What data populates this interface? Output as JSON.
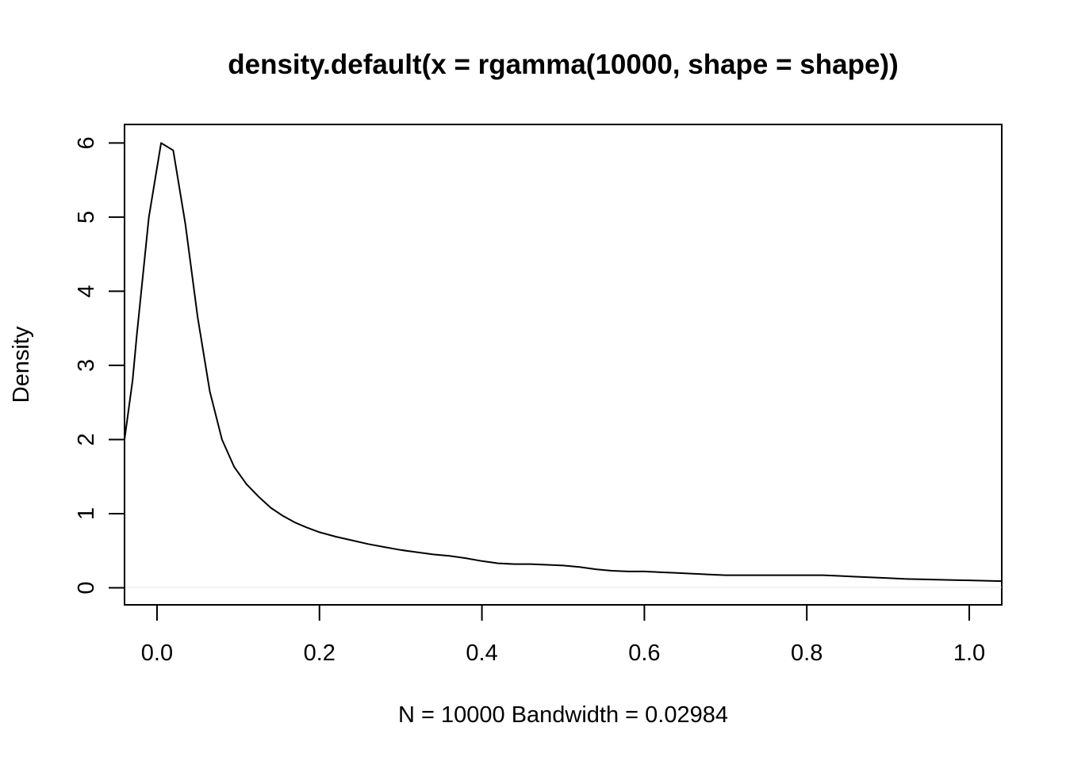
{
  "chart_data": {
    "type": "line",
    "title": "density.default(x = rgamma(10000, shape = shape))",
    "xlabel": "N = 10000   Bandwidth = 0.02984",
    "ylabel": "Density",
    "xlim": [
      -0.04,
      1.04
    ],
    "ylim": [
      -0.23,
      6.25
    ],
    "x_ticks": [
      0.0,
      0.2,
      0.4,
      0.6,
      0.8,
      1.0
    ],
    "x_tick_labels": [
      "0.0",
      "0.2",
      "0.4",
      "0.6",
      "0.8",
      "1.0"
    ],
    "y_ticks": [
      0,
      1,
      2,
      3,
      4,
      5,
      6
    ],
    "y_tick_labels": [
      "0",
      "1",
      "2",
      "3",
      "4",
      "5",
      "6"
    ],
    "grid": false,
    "series": [
      {
        "x": [
          -0.04,
          -0.03,
          -0.025,
          -0.01,
          0.005,
          0.02,
          0.035,
          0.05,
          0.065,
          0.08,
          0.095,
          0.11,
          0.125,
          0.14,
          0.155,
          0.17,
          0.185,
          0.2,
          0.22,
          0.24,
          0.26,
          0.28,
          0.3,
          0.32,
          0.34,
          0.36,
          0.38,
          0.4,
          0.42,
          0.44,
          0.46,
          0.48,
          0.5,
          0.52,
          0.54,
          0.56,
          0.58,
          0.6,
          0.62,
          0.64,
          0.66,
          0.68,
          0.7,
          0.72,
          0.74,
          0.76,
          0.78,
          0.8,
          0.82,
          0.84,
          0.86,
          0.88,
          0.9,
          0.92,
          0.94,
          0.96,
          0.98,
          1.0,
          1.02,
          1.04
        ],
        "y": [
          2.0,
          2.8,
          3.4,
          5.0,
          6.0,
          5.9,
          4.9,
          3.65,
          2.65,
          2.0,
          1.63,
          1.4,
          1.23,
          1.08,
          0.97,
          0.88,
          0.81,
          0.75,
          0.69,
          0.64,
          0.59,
          0.55,
          0.51,
          0.48,
          0.45,
          0.43,
          0.4,
          0.36,
          0.33,
          0.32,
          0.32,
          0.31,
          0.3,
          0.28,
          0.25,
          0.23,
          0.22,
          0.22,
          0.21,
          0.2,
          0.19,
          0.18,
          0.17,
          0.17,
          0.17,
          0.17,
          0.17,
          0.17,
          0.17,
          0.16,
          0.15,
          0.14,
          0.13,
          0.12,
          0.115,
          0.11,
          0.105,
          0.1,
          0.095,
          0.09
        ],
        "color": "#000000"
      }
    ]
  }
}
